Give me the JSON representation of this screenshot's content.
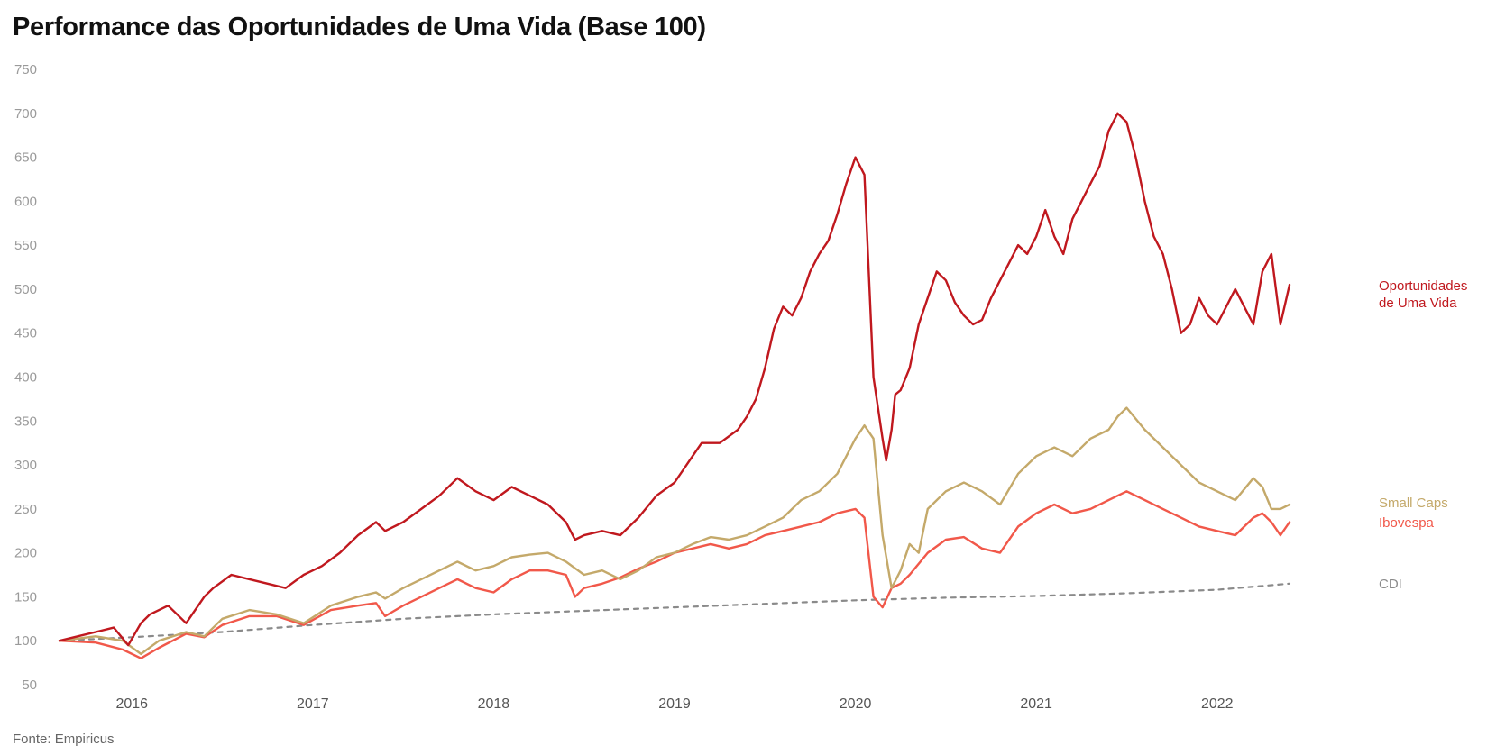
{
  "title": "Performance das Oportunidades de Uma Vida (Base 100)",
  "source": "Fonte: Empiricus",
  "chart_data": {
    "type": "line",
    "xlim": [
      2015.58,
      2022.45
    ],
    "ylim": [
      50,
      750
    ],
    "x_ticks": [
      2016,
      2017,
      2018,
      2019,
      2020,
      2021,
      2022
    ],
    "x_tick_labels": [
      "2016",
      "2017",
      "2018",
      "2019",
      "2020",
      "2021",
      "2022"
    ],
    "y_ticks": [
      50,
      100,
      150,
      200,
      250,
      300,
      350,
      400,
      450,
      500,
      550,
      600,
      650,
      700,
      750
    ],
    "y_tick_labels": [
      "50",
      "100",
      "150",
      "200",
      "250",
      "300",
      "350",
      "400",
      "450",
      "500",
      "550",
      "600",
      "650",
      "700",
      "750"
    ],
    "grid": false,
    "legend": "direct labels at line ends (right)",
    "series": [
      {
        "name": "Oportunidades de Uma Vida",
        "label_lines": [
          "Oportunidades",
          "de Uma Vida"
        ],
        "color": "#c0181e",
        "x": [
          2015.6,
          2015.7,
          2015.8,
          2015.9,
          2015.98,
          2016.05,
          2016.1,
          2016.2,
          2016.3,
          2016.4,
          2016.45,
          2016.55,
          2016.65,
          2016.75,
          2016.85,
          2016.95,
          2017.05,
          2017.15,
          2017.25,
          2017.35,
          2017.4,
          2017.5,
          2017.6,
          2017.7,
          2017.8,
          2017.9,
          2018.0,
          2018.1,
          2018.2,
          2018.3,
          2018.4,
          2018.45,
          2018.5,
          2018.6,
          2018.7,
          2018.8,
          2018.9,
          2019.0,
          2019.05,
          2019.1,
          2019.15,
          2019.25,
          2019.35,
          2019.4,
          2019.45,
          2019.5,
          2019.55,
          2019.6,
          2019.65,
          2019.7,
          2019.75,
          2019.8,
          2019.85,
          2019.9,
          2019.95,
          2020.0,
          2020.05,
          2020.1,
          2020.15,
          2020.17,
          2020.2,
          2020.22,
          2020.25,
          2020.3,
          2020.35,
          2020.4,
          2020.45,
          2020.5,
          2020.55,
          2020.6,
          2020.65,
          2020.7,
          2020.75,
          2020.8,
          2020.85,
          2020.9,
          2020.95,
          2021.0,
          2021.05,
          2021.1,
          2021.15,
          2021.2,
          2021.25,
          2021.3,
          2021.35,
          2021.4,
          2021.45,
          2021.5,
          2021.55,
          2021.6,
          2021.65,
          2021.7,
          2021.75,
          2021.8,
          2021.85,
          2021.9,
          2021.95,
          2022.0,
          2022.05,
          2022.1,
          2022.15,
          2022.2,
          2022.25,
          2022.3,
          2022.35,
          2022.4
        ],
        "values": [
          100,
          105,
          110,
          115,
          95,
          120,
          130,
          140,
          120,
          150,
          160,
          175,
          170,
          165,
          160,
          175,
          185,
          200,
          220,
          235,
          225,
          235,
          250,
          265,
          285,
          270,
          260,
          275,
          265,
          255,
          235,
          215,
          220,
          225,
          220,
          240,
          265,
          280,
          295,
          310,
          325,
          325,
          340,
          355,
          375,
          410,
          455,
          480,
          470,
          490,
          520,
          540,
          555,
          585,
          620,
          650,
          630,
          400,
          330,
          305,
          340,
          380,
          385,
          410,
          460,
          490,
          520,
          510,
          485,
          470,
          460,
          465,
          490,
          510,
          530,
          550,
          540,
          560,
          590,
          560,
          540,
          580,
          600,
          620,
          640,
          680,
          700,
          690,
          650,
          600,
          560,
          540,
          500,
          450,
          460,
          490,
          470,
          460,
          480,
          500,
          480,
          460,
          520,
          540,
          460,
          505
        ]
      },
      {
        "name": "Small Caps",
        "label_lines": [
          "Small Caps"
        ],
        "color": "#c4a96a",
        "x": [
          2015.6,
          2015.8,
          2015.95,
          2016.05,
          2016.15,
          2016.3,
          2016.4,
          2016.5,
          2016.65,
          2016.8,
          2016.95,
          2017.1,
          2017.25,
          2017.35,
          2017.4,
          2017.5,
          2017.6,
          2017.7,
          2017.8,
          2017.9,
          2018.0,
          2018.1,
          2018.2,
          2018.3,
          2018.4,
          2018.5,
          2018.6,
          2018.7,
          2018.8,
          2018.9,
          2019.0,
          2019.1,
          2019.2,
          2019.3,
          2019.4,
          2019.5,
          2019.6,
          2019.7,
          2019.8,
          2019.9,
          2020.0,
          2020.05,
          2020.1,
          2020.15,
          2020.2,
          2020.25,
          2020.3,
          2020.35,
          2020.4,
          2020.5,
          2020.6,
          2020.7,
          2020.8,
          2020.9,
          2021.0,
          2021.1,
          2021.2,
          2021.3,
          2021.4,
          2021.45,
          2021.5,
          2021.6,
          2021.7,
          2021.8,
          2021.9,
          2022.0,
          2022.1,
          2022.2,
          2022.25,
          2022.3,
          2022.35,
          2022.4
        ],
        "values": [
          100,
          105,
          100,
          85,
          100,
          110,
          105,
          125,
          135,
          130,
          120,
          140,
          150,
          155,
          148,
          160,
          170,
          180,
          190,
          180,
          185,
          195,
          198,
          200,
          190,
          175,
          180,
          170,
          180,
          195,
          200,
          210,
          218,
          215,
          220,
          230,
          240,
          260,
          270,
          290,
          330,
          345,
          330,
          220,
          160,
          180,
          210,
          200,
          250,
          270,
          280,
          270,
          255,
          290,
          310,
          320,
          310,
          330,
          340,
          355,
          365,
          340,
          320,
          300,
          280,
          270,
          260,
          285,
          275,
          250,
          250,
          255
        ]
      },
      {
        "name": "Ibovespa",
        "label_lines": [
          "Ibovespa"
        ],
        "color": "#f1584a",
        "x": [
          2015.6,
          2015.8,
          2015.95,
          2016.05,
          2016.15,
          2016.3,
          2016.4,
          2016.5,
          2016.65,
          2016.8,
          2016.95,
          2017.1,
          2017.25,
          2017.35,
          2017.4,
          2017.5,
          2017.6,
          2017.7,
          2017.8,
          2017.9,
          2018.0,
          2018.1,
          2018.2,
          2018.3,
          2018.4,
          2018.45,
          2018.5,
          2018.6,
          2018.7,
          2018.8,
          2018.9,
          2019.0,
          2019.1,
          2019.2,
          2019.3,
          2019.4,
          2019.5,
          2019.6,
          2019.7,
          2019.8,
          2019.9,
          2020.0,
          2020.05,
          2020.1,
          2020.15,
          2020.2,
          2020.25,
          2020.3,
          2020.4,
          2020.5,
          2020.6,
          2020.7,
          2020.8,
          2020.9,
          2021.0,
          2021.1,
          2021.2,
          2021.3,
          2021.4,
          2021.45,
          2021.5,
          2021.6,
          2021.7,
          2021.8,
          2021.9,
          2022.0,
          2022.1,
          2022.2,
          2022.25,
          2022.3,
          2022.35,
          2022.4
        ],
        "values": [
          100,
          98,
          90,
          80,
          92,
          108,
          104,
          118,
          128,
          128,
          118,
          135,
          140,
          143,
          128,
          140,
          150,
          160,
          170,
          160,
          155,
          170,
          180,
          180,
          175,
          150,
          160,
          165,
          172,
          182,
          190,
          200,
          205,
          210,
          205,
          210,
          220,
          225,
          230,
          235,
          245,
          250,
          240,
          150,
          138,
          160,
          165,
          175,
          200,
          215,
          218,
          205,
          200,
          230,
          245,
          255,
          245,
          250,
          260,
          265,
          270,
          260,
          250,
          240,
          230,
          225,
          220,
          240,
          245,
          235,
          220,
          235
        ]
      },
      {
        "name": "CDI",
        "label_lines": [
          "CDI"
        ],
        "color": "#8a8a8a",
        "dashed": true,
        "x": [
          2015.6,
          2016.0,
          2016.5,
          2017.0,
          2017.5,
          2018.0,
          2018.5,
          2019.0,
          2019.5,
          2020.0,
          2020.5,
          2021.0,
          2021.5,
          2022.0,
          2022.4
        ],
        "values": [
          100,
          104,
          110,
          118,
          125,
          130,
          134,
          138,
          142,
          146,
          149,
          151,
          154,
          158,
          165
        ]
      }
    ]
  }
}
